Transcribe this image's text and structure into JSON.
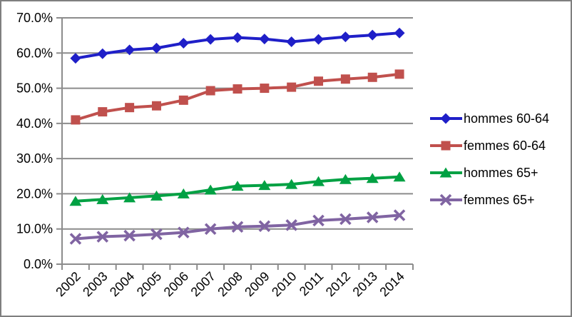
{
  "chart_data": {
    "type": "line",
    "title": "",
    "xlabel": "",
    "ylabel": "",
    "grid": true,
    "legend_position": "right",
    "categories": [
      "2002",
      "2003",
      "2004",
      "2005",
      "2006",
      "2007",
      "2008",
      "2009",
      "2010",
      "2011",
      "2012",
      "2013",
      "2014"
    ],
    "y_axis": {
      "min": 0,
      "max": 70,
      "step": 10,
      "tick_labels": [
        "0.0%",
        "10.0%",
        "20.0%",
        "30.0%",
        "40.0%",
        "50.0%",
        "60.0%",
        "70.0%"
      ]
    },
    "series": [
      {
        "name": "hommes 60-64",
        "marker": "diamond",
        "color": "#1F1FC8",
        "values": [
          58.5,
          59.8,
          60.9,
          61.4,
          62.8,
          63.9,
          64.4,
          64.0,
          63.2,
          63.9,
          64.6,
          65.1,
          65.7
        ]
      },
      {
        "name": "femmes 60-64",
        "marker": "square",
        "color": "#C0504D",
        "values": [
          41.0,
          43.3,
          44.5,
          45.0,
          46.6,
          49.3,
          49.8,
          50.0,
          50.3,
          52.0,
          52.6,
          53.1,
          54.0
        ]
      },
      {
        "name": "hommes 65+",
        "marker": "triangle",
        "color": "#00A143",
        "values": [
          17.9,
          18.4,
          18.9,
          19.4,
          20.0,
          21.1,
          22.2,
          22.4,
          22.7,
          23.5,
          24.1,
          24.4,
          24.8
        ]
      },
      {
        "name": "femmes 65+",
        "marker": "x",
        "color": "#8064A2",
        "values": [
          7.2,
          7.8,
          8.1,
          8.5,
          9.0,
          10.0,
          10.6,
          10.8,
          11.1,
          12.4,
          12.8,
          13.3,
          13.9
        ]
      }
    ],
    "colors": {
      "gridline": "#8C8C8C",
      "axis": "#8C8C8C",
      "tick_text": "#000000"
    }
  }
}
